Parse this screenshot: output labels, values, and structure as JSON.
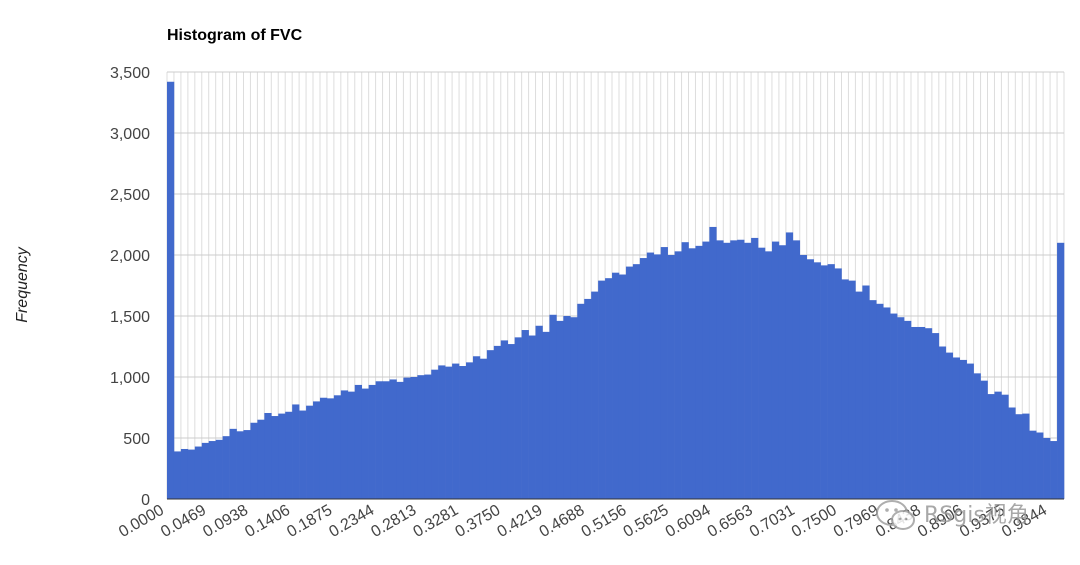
{
  "chart_data": {
    "type": "bar",
    "title": "Histogram of FVC",
    "xlabel": "",
    "ylabel": "Frequency",
    "ylim": [
      0,
      3500
    ],
    "yticks": [
      0,
      500,
      1000,
      1500,
      2000,
      2500,
      3000,
      3500
    ],
    "ytick_labels": [
      "0",
      "500",
      "1,000",
      "1,500",
      "2,000",
      "2,500",
      "3,000",
      "3,500"
    ],
    "xlim": [
      0,
      1
    ],
    "bin_width": 0.0078125,
    "xtick_labels": [
      "0.0000",
      "0.0469",
      "0.0938",
      "0.1406",
      "0.1875",
      "0.2344",
      "0.2813",
      "0.3281",
      "0.3750",
      "0.4219",
      "0.4688",
      "0.5156",
      "0.5625",
      "0.6094",
      "0.6563",
      "0.7031",
      "0.7500",
      "0.7969",
      "0.8438",
      "0.8906",
      "0.9375",
      "0.9844"
    ],
    "grid": true,
    "color": "#4169cc",
    "values": [
      3420,
      390,
      410,
      405,
      430,
      460,
      475,
      485,
      515,
      575,
      555,
      565,
      625,
      650,
      705,
      680,
      700,
      715,
      775,
      725,
      765,
      800,
      830,
      825,
      850,
      890,
      880,
      935,
      905,
      935,
      965,
      965,
      980,
      960,
      995,
      1000,
      1015,
      1020,
      1060,
      1095,
      1085,
      1110,
      1090,
      1120,
      1170,
      1150,
      1220,
      1255,
      1300,
      1270,
      1325,
      1385,
      1340,
      1420,
      1370,
      1510,
      1460,
      1500,
      1490,
      1600,
      1640,
      1700,
      1790,
      1810,
      1855,
      1840,
      1905,
      1925,
      1975,
      2020,
      2005,
      2065,
      2000,
      2030,
      2105,
      2055,
      2075,
      2110,
      2230,
      2120,
      2100,
      2120,
      2125,
      2100,
      2140,
      2060,
      2030,
      2110,
      2080,
      2185,
      2120,
      2000,
      1965,
      1940,
      1915,
      1925,
      1890,
      1800,
      1790,
      1700,
      1750,
      1630,
      1600,
      1570,
      1520,
      1490,
      1460,
      1410,
      1410,
      1400,
      1360,
      1250,
      1200,
      1160,
      1140,
      1110,
      1030,
      970,
      860,
      880,
      855,
      750,
      695,
      700,
      560,
      545,
      500,
      475,
      2100
    ]
  },
  "watermark": {
    "text": "RSgis视角"
  }
}
